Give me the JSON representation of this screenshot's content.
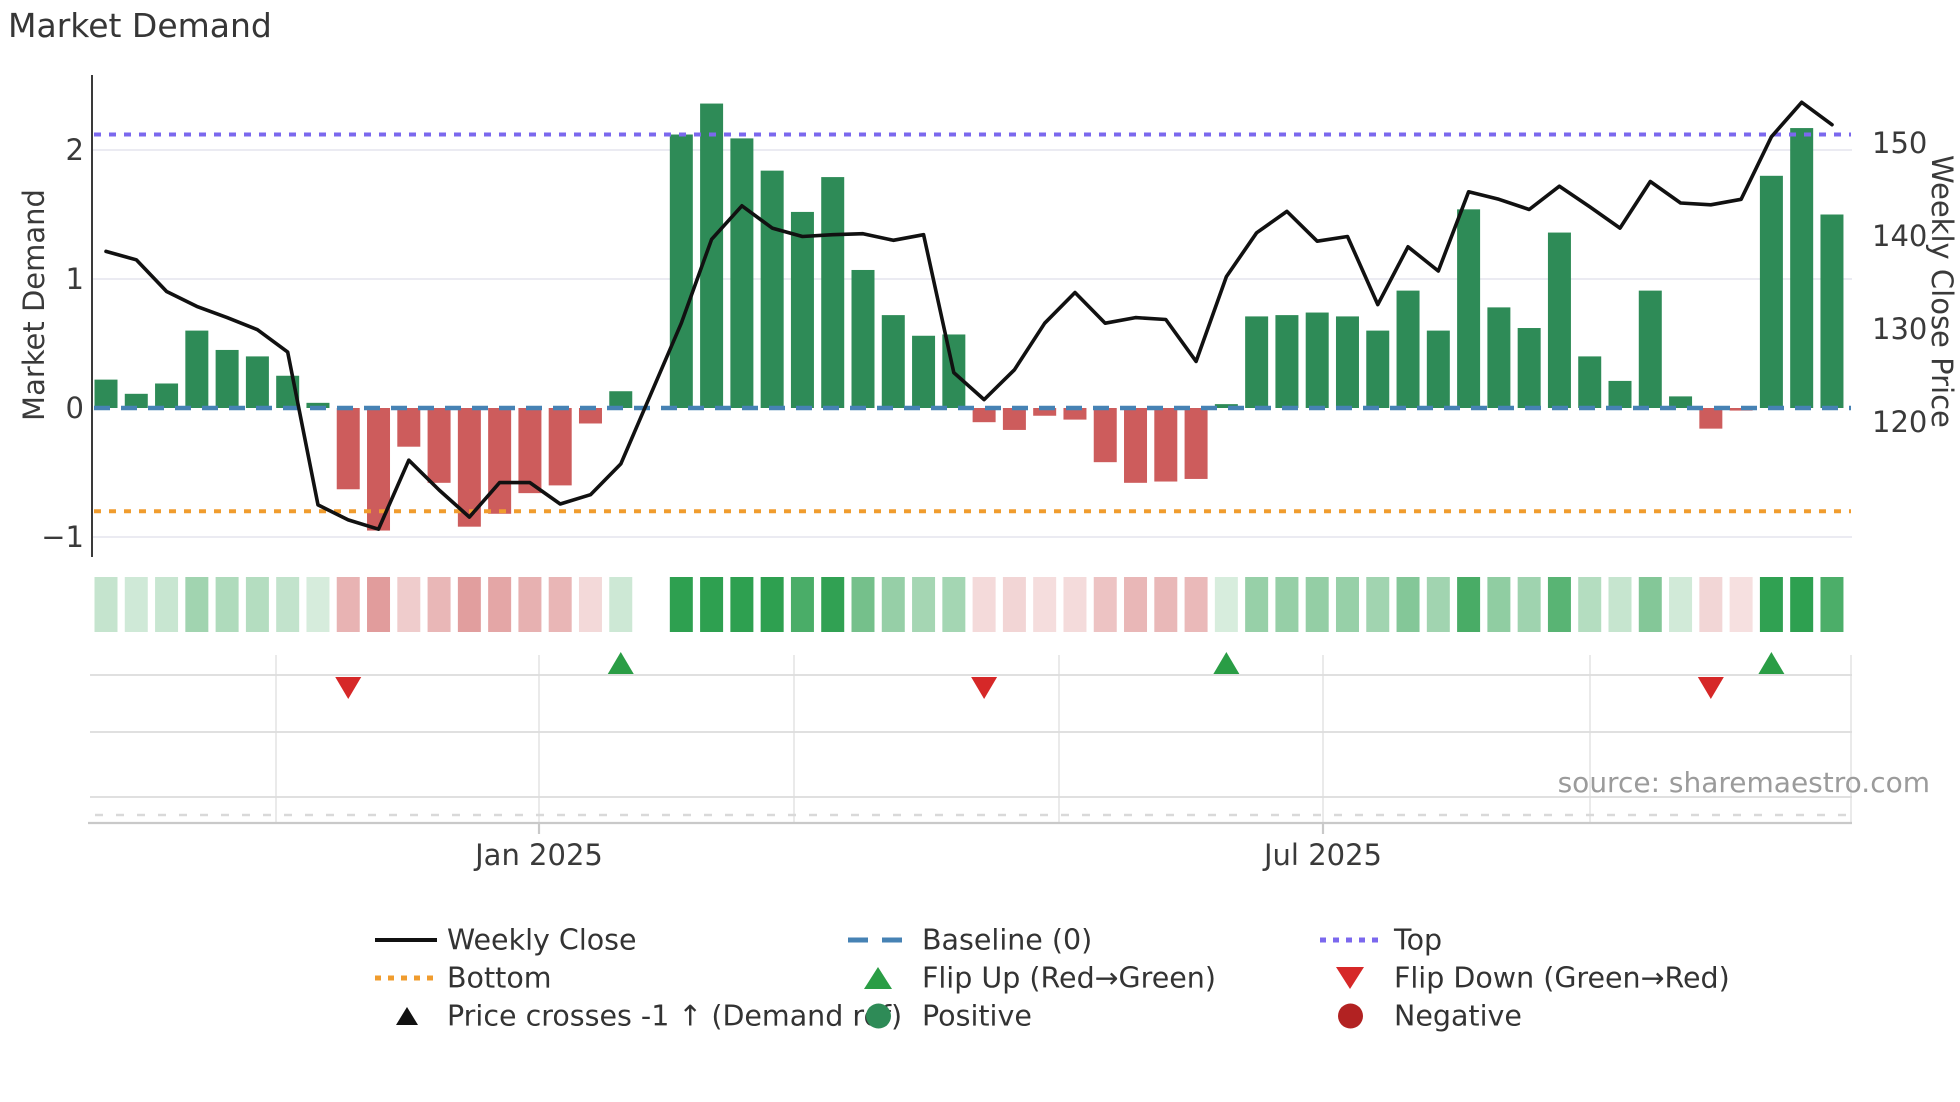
{
  "title": "Market Demand",
  "source_text": "source: sharemaestro.com",
  "axes": {
    "left_label": "Market Demand",
    "right_label": "Weekly Close Price",
    "demand_ticks": [
      {
        "label": "2",
        "value": 2
      },
      {
        "label": "1",
        "value": 1
      },
      {
        "label": "0",
        "value": 0
      },
      {
        "label": "−1",
        "value": -1
      }
    ],
    "price_ticks": [
      {
        "label": "150",
        "value": 150
      },
      {
        "label": "140",
        "value": 140
      },
      {
        "label": "130",
        "value": 130
      },
      {
        "label": "120",
        "value": 120
      }
    ],
    "x_ticks": [
      {
        "label": "Jan 2025",
        "x": 539
      },
      {
        "label": "Jul 2025",
        "x": 1323
      }
    ]
  },
  "legend": {
    "weekly_close": "Weekly Close",
    "baseline": "Baseline (0)",
    "top": "Top",
    "bottom": "Bottom",
    "flip_up": "Flip Up (Red→Green)",
    "flip_down": "Flip Down (Green→Red)",
    "price_crosses": "Price crosses -1 ↑ (Demand ref)",
    "positive": "Positive",
    "negative": "Negative"
  },
  "colors": {
    "bar_positive": "#2e8b57",
    "bar_negative": "#cd5c5c",
    "price_line": "#111111",
    "baseline": "#4682b4",
    "top_line": "#7b68ee",
    "bottom_line": "#f09c2e",
    "flip_up_marker": "#2a9d45",
    "flip_down_marker": "#d62828",
    "positive_dot": "#2e8b57",
    "negative_dot": "#b22222",
    "heat_green": [
      46,
      160,
      80
    ],
    "heat_red": [
      205,
      92,
      92
    ],
    "grid": "#ebebf2",
    "panel_grid": "#dcdcdc"
  },
  "chart_data": {
    "type": "bar+line",
    "x_unit": "week",
    "note_gap_slot": 18,
    "demand_ylim": [
      -1.35,
      2.65
    ],
    "price_right_ticks": [
      110,
      120,
      130,
      140,
      150
    ],
    "baseline_value": 0,
    "top_value": 2.12,
    "bottom_value": -0.8,
    "demand": [
      0.22,
      0.11,
      0.19,
      0.6,
      0.45,
      0.4,
      0.25,
      0.04,
      -0.63,
      -0.95,
      -0.3,
      -0.58,
      -0.92,
      -0.82,
      -0.66,
      -0.6,
      -0.12,
      0.13,
      null,
      2.12,
      2.36,
      2.09,
      1.84,
      1.52,
      1.79,
      1.07,
      0.72,
      0.56,
      0.57,
      -0.11,
      -0.17,
      -0.06,
      -0.09,
      -0.42,
      -0.58,
      -0.57,
      -0.55,
      0.03,
      0.71,
      0.72,
      0.74,
      0.71,
      0.6,
      0.91,
      0.6,
      1.54,
      0.78,
      0.62,
      1.36,
      0.4,
      0.21,
      0.91,
      0.09,
      -0.16,
      -0.02,
      1.8,
      2.17,
      1.5
    ],
    "weekly_close": [
      138.3,
      137.4,
      134.0,
      132.4,
      131.2,
      129.9,
      127.5,
      111.1,
      109.5,
      108.5,
      115.9,
      112.7,
      109.8,
      113.5,
      113.5,
      111.2,
      112.2,
      115.5,
      null,
      130.6,
      139.6,
      143.2,
      140.8,
      139.9,
      140.1,
      140.2,
      139.5,
      140.1,
      125.3,
      122.4,
      125.6,
      130.6,
      133.9,
      130.6,
      131.2,
      131.0,
      126.5,
      135.6,
      140.3,
      142.6,
      139.4,
      139.9,
      132.6,
      138.8,
      136.2,
      144.7,
      143.9,
      142.8,
      145.3,
      143.1,
      140.8,
      145.8,
      143.5,
      143.3,
      143.9,
      150.6,
      154.3,
      151.9
    ],
    "flip_up_slots": [
      17,
      37,
      55
    ],
    "flip_down_slots": [
      8,
      29,
      53
    ],
    "price_cross_slots": []
  }
}
